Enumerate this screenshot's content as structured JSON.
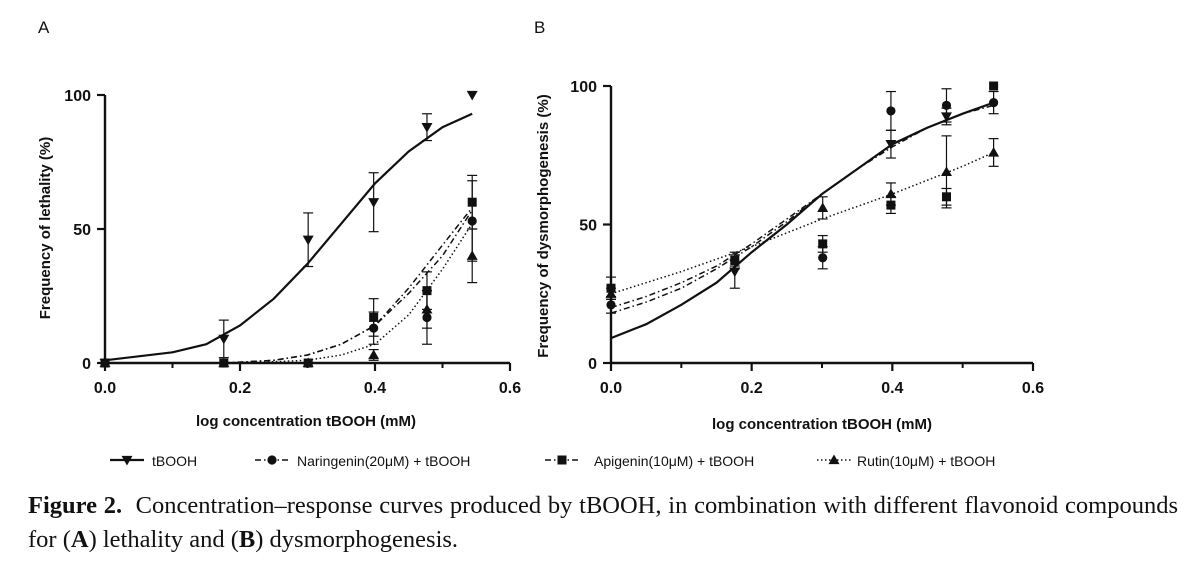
{
  "legend": [
    {
      "label": "tBOOH",
      "marker": "triangle-down",
      "dash": "solid"
    },
    {
      "label": "Naringenin(20μM) + tBOOH",
      "marker": "circle",
      "dash": "dashdot"
    },
    {
      "label": "Apigenin(10μM) + tBOOH",
      "marker": "square",
      "dash": "dashdot"
    },
    {
      "label": "Rutin(10μM) + tBOOH",
      "marker": "triangle-up",
      "dash": "dotted"
    }
  ],
  "caption": {
    "figure_label": "Figure 2.",
    "text_1": "Concentration–response curves produced by tBOOH, in combination with different flavonoid compounds for (",
    "bold_a": "A",
    "text_2": ") lethality and (",
    "bold_b": "B",
    "text_3": ") dysmorphogenesis."
  },
  "chart_data": [
    {
      "type": "scatter",
      "panel_letter": "A",
      "xlabel": "log concentration tBOOH (mM)",
      "ylabel": "Frequency of lethality (%)",
      "xlim": [
        0,
        0.6
      ],
      "ylim": [
        0,
        100
      ],
      "xticks": [
        "0.0",
        "0.2",
        "0.4",
        "0.6"
      ],
      "yticks": [
        "0",
        "50",
        "100"
      ],
      "grid": false,
      "legend": "bottom",
      "series": [
        {
          "name": "tBOOH",
          "color": "#111111",
          "points": [
            {
              "x": 0,
              "y": 0,
              "err": 0
            },
            {
              "x": 0.176,
              "y": 9,
              "err": 7
            },
            {
              "x": 0.301,
              "y": 46,
              "err": 10
            },
            {
              "x": 0.398,
              "y": 60,
              "err": 11
            },
            {
              "x": 0.477,
              "y": 88,
              "err": 5
            },
            {
              "x": 0.544,
              "y": 100,
              "err": 0
            }
          ],
          "fit": [
            {
              "x": 0,
              "y": 1
            },
            {
              "x": 0.1,
              "y": 4
            },
            {
              "x": 0.15,
              "y": 7
            },
            {
              "x": 0.2,
              "y": 14
            },
            {
              "x": 0.25,
              "y": 24
            },
            {
              "x": 0.3,
              "y": 37
            },
            {
              "x": 0.35,
              "y": 52
            },
            {
              "x": 0.4,
              "y": 67
            },
            {
              "x": 0.45,
              "y": 79
            },
            {
              "x": 0.5,
              "y": 88
            },
            {
              "x": 0.544,
              "y": 93
            }
          ]
        },
        {
          "name": "Naringenin(20μM) + tBOOH",
          "color": "#111111",
          "points": [
            {
              "x": 0,
              "y": 0,
              "err": 0
            },
            {
              "x": 0.176,
              "y": 0,
              "err": 0
            },
            {
              "x": 0.301,
              "y": 0,
              "err": 0
            },
            {
              "x": 0.398,
              "y": 13,
              "err": 6
            },
            {
              "x": 0.477,
              "y": 17,
              "err": 10
            },
            {
              "x": 0.544,
              "y": 53,
              "err": 15
            }
          ],
          "fit": [
            {
              "x": 0.176,
              "y": 0
            },
            {
              "x": 0.25,
              "y": 1
            },
            {
              "x": 0.3,
              "y": 3
            },
            {
              "x": 0.35,
              "y": 7
            },
            {
              "x": 0.4,
              "y": 14
            },
            {
              "x": 0.45,
              "y": 26
            },
            {
              "x": 0.5,
              "y": 40
            },
            {
              "x": 0.544,
              "y": 57
            }
          ]
        },
        {
          "name": "Apigenin(10μM) + tBOOH",
          "color": "#111111",
          "points": [
            {
              "x": 0,
              "y": 0,
              "err": 0
            },
            {
              "x": 0.176,
              "y": 0,
              "err": 0
            },
            {
              "x": 0.301,
              "y": 0,
              "err": 0
            },
            {
              "x": 0.398,
              "y": 17,
              "err": 7
            },
            {
              "x": 0.477,
              "y": 27,
              "err": 7
            },
            {
              "x": 0.544,
              "y": 60,
              "err": 10
            }
          ],
          "fit": [
            {
              "x": 0.176,
              "y": 0
            },
            {
              "x": 0.25,
              "y": 1
            },
            {
              "x": 0.3,
              "y": 3
            },
            {
              "x": 0.35,
              "y": 7
            },
            {
              "x": 0.4,
              "y": 14
            },
            {
              "x": 0.45,
              "y": 28
            },
            {
              "x": 0.5,
              "y": 44
            },
            {
              "x": 0.544,
              "y": 58
            }
          ]
        },
        {
          "name": "Rutin(10μM) + tBOOH",
          "color": "#111111",
          "points": [
            {
              "x": 0,
              "y": 0,
              "err": 0
            },
            {
              "x": 0.176,
              "y": 0,
              "err": 0
            },
            {
              "x": 0.301,
              "y": 0,
              "err": 0
            },
            {
              "x": 0.398,
              "y": 3,
              "err": 2
            },
            {
              "x": 0.477,
              "y": 20,
              "err": 7
            },
            {
              "x": 0.544,
              "y": 40,
              "err": 10
            }
          ],
          "fit": [
            {
              "x": 0.176,
              "y": 0
            },
            {
              "x": 0.25,
              "y": 0.5
            },
            {
              "x": 0.3,
              "y": 1
            },
            {
              "x": 0.35,
              "y": 3
            },
            {
              "x": 0.4,
              "y": 7
            },
            {
              "x": 0.45,
              "y": 18
            },
            {
              "x": 0.5,
              "y": 35
            },
            {
              "x": 0.544,
              "y": 52
            }
          ]
        }
      ]
    },
    {
      "type": "scatter",
      "panel_letter": "B",
      "xlabel": "log concentration tBOOH (mM)",
      "ylabel": "Frequency of dysmorphogenesis (%)",
      "xlim": [
        0,
        0.6
      ],
      "ylim": [
        0,
        100
      ],
      "xticks": [
        "0.0",
        "0.2",
        "0.4",
        "0.6"
      ],
      "yticks": [
        "0",
        "50",
        "100"
      ],
      "grid": false,
      "legend": "bottom",
      "series": [
        {
          "name": "tBOOH",
          "color": "#111111",
          "points": [
            {
              "x": 0.176,
              "y": 33,
              "err": 6
            },
            {
              "x": 0.398,
              "y": 79,
              "err": 5
            },
            {
              "x": 0.477,
              "y": 89,
              "err": 3
            }
          ],
          "fit": [
            {
              "x": 0,
              "y": 9
            },
            {
              "x": 0.05,
              "y": 14
            },
            {
              "x": 0.1,
              "y": 21
            },
            {
              "x": 0.15,
              "y": 29
            },
            {
              "x": 0.2,
              "y": 40
            },
            {
              "x": 0.25,
              "y": 50
            },
            {
              "x": 0.3,
              "y": 61
            },
            {
              "x": 0.35,
              "y": 70
            },
            {
              "x": 0.4,
              "y": 79
            },
            {
              "x": 0.45,
              "y": 85
            },
            {
              "x": 0.5,
              "y": 90
            },
            {
              "x": 0.544,
              "y": 94
            }
          ]
        },
        {
          "name": "Naringenin(20μM) + tBOOH",
          "color": "#111111",
          "points": [
            {
              "x": 0,
              "y": 21,
              "err": 3
            },
            {
              "x": 0.176,
              "y": 37,
              "err": 2
            },
            {
              "x": 0.301,
              "y": 38,
              "err": 4
            },
            {
              "x": 0.398,
              "y": 91,
              "err": 7
            },
            {
              "x": 0.477,
              "y": 93,
              "err": 6
            },
            {
              "x": 0.544,
              "y": 94,
              "err": 4
            }
          ],
          "fit": [
            {
              "x": 0,
              "y": 18
            },
            {
              "x": 0.05,
              "y": 22
            },
            {
              "x": 0.1,
              "y": 27
            },
            {
              "x": 0.15,
              "y": 34
            },
            {
              "x": 0.2,
              "y": 42
            },
            {
              "x": 0.25,
              "y": 51
            },
            {
              "x": 0.3,
              "y": 61
            },
            {
              "x": 0.35,
              "y": 70
            },
            {
              "x": 0.4,
              "y": 79
            },
            {
              "x": 0.45,
              "y": 85
            },
            {
              "x": 0.5,
              "y": 90
            },
            {
              "x": 0.544,
              "y": 93
            }
          ]
        },
        {
          "name": "Apigenin(10μM) + tBOOH",
          "color": "#111111",
          "points": [
            {
              "x": 0,
              "y": 27,
              "err": 4
            },
            {
              "x": 0.176,
              "y": 37,
              "err": 3
            },
            {
              "x": 0.301,
              "y": 43,
              "err": 3
            },
            {
              "x": 0.398,
              "y": 57,
              "err": 3
            },
            {
              "x": 0.477,
              "y": 60,
              "err": 3
            },
            {
              "x": 0.544,
              "y": 100,
              "err": 0
            }
          ],
          "fit": [
            {
              "x": 0,
              "y": 20
            },
            {
              "x": 0.05,
              "y": 24
            },
            {
              "x": 0.1,
              "y": 29
            },
            {
              "x": 0.15,
              "y": 35
            },
            {
              "x": 0.2,
              "y": 43
            },
            {
              "x": 0.25,
              "y": 52
            },
            {
              "x": 0.3,
              "y": 61
            },
            {
              "x": 0.35,
              "y": 70
            },
            {
              "x": 0.4,
              "y": 78
            },
            {
              "x": 0.45,
              "y": 85
            },
            {
              "x": 0.5,
              "y": 90
            },
            {
              "x": 0.544,
              "y": 94
            }
          ]
        },
        {
          "name": "Rutin(10μM) + tBOOH",
          "color": "#111111",
          "points": [
            {
              "x": 0,
              "y": 25,
              "err": 2
            },
            {
              "x": 0.301,
              "y": 56,
              "err": 4
            },
            {
              "x": 0.398,
              "y": 61,
              "err": 4
            },
            {
              "x": 0.477,
              "y": 69,
              "err": 13
            },
            {
              "x": 0.544,
              "y": 76,
              "err": 5
            }
          ],
          "fit": [
            {
              "x": 0,
              "y": 25
            },
            {
              "x": 0.1,
              "y": 33
            },
            {
              "x": 0.2,
              "y": 42
            },
            {
              "x": 0.3,
              "y": 52
            },
            {
              "x": 0.4,
              "y": 61
            },
            {
              "x": 0.5,
              "y": 71
            },
            {
              "x": 0.544,
              "y": 76
            }
          ]
        }
      ]
    }
  ]
}
